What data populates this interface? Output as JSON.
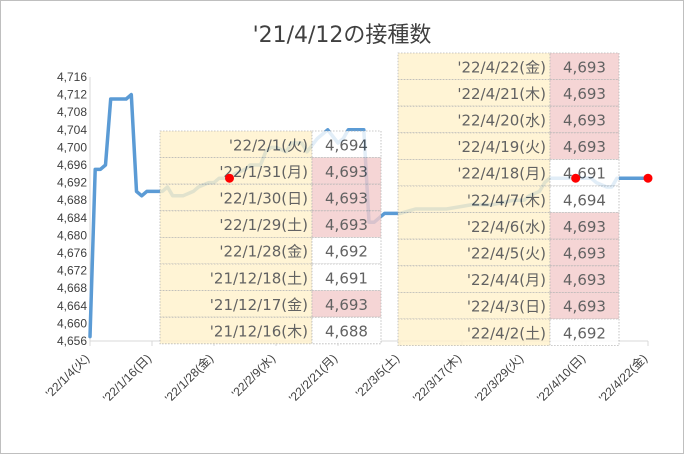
{
  "chart_data": {
    "type": "line",
    "title": "'21/4/12の接種数",
    "ylim": [
      4656,
      4716
    ],
    "y_ticks": [
      "4,656",
      "4,660",
      "4,664",
      "4,668",
      "4,672",
      "4,676",
      "4,680",
      "4,684",
      "4,688",
      "4,692",
      "4,696",
      "4,700",
      "4,704",
      "4,708",
      "4,712",
      "4,716"
    ],
    "x_ticks": [
      "'22/1/4(火)",
      "'22/1/16(日)",
      "'22/1/28(金)",
      "'22/2/9(水)",
      "'22/2/21(月)",
      "'22/3/5(土)",
      "'22/3/17(木)",
      "'22/3/29(火)",
      "'22/4/10(日)",
      "'22/4/22(金)"
    ],
    "x_start": "2022-01-04",
    "x_end": "2022-04-22",
    "series": [
      {
        "color": "#5b9bd5",
        "points": [
          [
            "2022-01-04",
            4657
          ],
          [
            "2022-01-05",
            4695
          ],
          [
            "2022-01-06",
            4695
          ],
          [
            "2022-01-07",
            4696
          ],
          [
            "2022-01-08",
            4711
          ],
          [
            "2022-01-10",
            4711
          ],
          [
            "2022-01-11",
            4711
          ],
          [
            "2022-01-12",
            4712
          ],
          [
            "2022-01-13",
            4690
          ],
          [
            "2022-01-14",
            4689
          ],
          [
            "2022-01-15",
            4690
          ],
          [
            "2022-01-16",
            4690
          ],
          [
            "2022-01-18",
            4690
          ],
          [
            "2022-01-19",
            4691
          ],
          [
            "2022-01-20",
            4689
          ],
          [
            "2022-01-22",
            4689
          ],
          [
            "2022-01-24",
            4690
          ],
          [
            "2022-01-25",
            4691
          ],
          [
            "2022-01-27",
            4692
          ],
          [
            "2022-01-28",
            4692
          ],
          [
            "2022-01-29",
            4693
          ],
          [
            "2022-01-30",
            4693
          ],
          [
            "2022-01-31",
            4693
          ],
          [
            "2022-02-01",
            4694
          ],
          [
            "2022-02-03",
            4695
          ],
          [
            "2022-02-04",
            4696
          ],
          [
            "2022-02-06",
            4696
          ],
          [
            "2022-02-07",
            4699
          ],
          [
            "2022-02-08",
            4700
          ],
          [
            "2022-02-09",
            4700
          ],
          [
            "2022-02-11",
            4699
          ],
          [
            "2022-02-12",
            4701
          ],
          [
            "2022-02-14",
            4701
          ],
          [
            "2022-02-15",
            4699
          ],
          [
            "2022-02-17",
            4702
          ],
          [
            "2022-02-19",
            4704
          ],
          [
            "2022-02-21",
            4701
          ],
          [
            "2022-02-22",
            4702
          ],
          [
            "2022-02-23",
            4704
          ],
          [
            "2022-02-26",
            4704
          ],
          [
            "2022-02-27",
            4683
          ],
          [
            "2022-02-28",
            4683
          ],
          [
            "2022-03-01",
            4684
          ],
          [
            "2022-03-02",
            4685
          ],
          [
            "2022-03-05",
            4685
          ],
          [
            "2022-03-08",
            4686
          ],
          [
            "2022-03-14",
            4686
          ],
          [
            "2022-03-19",
            4687
          ],
          [
            "2022-03-23",
            4687
          ],
          [
            "2022-03-27",
            4688
          ],
          [
            "2022-03-29",
            4688
          ],
          [
            "2022-03-30",
            4689
          ],
          [
            "2022-04-01",
            4690
          ],
          [
            "2022-04-02",
            4692
          ],
          [
            "2022-04-03",
            4693
          ],
          [
            "2022-04-11",
            4693
          ],
          [
            "2022-04-12",
            4692
          ],
          [
            "2022-04-14",
            4691
          ],
          [
            "2022-04-15",
            4691
          ],
          [
            "2022-04-16",
            4693
          ],
          [
            "2022-04-22",
            4693
          ]
        ]
      }
    ],
    "markers": [
      {
        "x": "2022-01-31",
        "y": 4693,
        "color": "#ff0000"
      },
      {
        "x": "2022-04-08",
        "y": 4693,
        "color": "#ff0000"
      },
      {
        "x": "2022-04-22",
        "y": 4693,
        "color": "#ff0000"
      }
    ],
    "grid": false,
    "legend": "none"
  },
  "tables": [
    {
      "rows": [
        {
          "date": "'22/2/1(火)",
          "value": "4,694",
          "highlight": false
        },
        {
          "date": "'22/1/31(月)",
          "value": "4,693",
          "highlight": true
        },
        {
          "date": "'22/1/30(日)",
          "value": "4,693",
          "highlight": true
        },
        {
          "date": "'22/1/29(土)",
          "value": "4,693",
          "highlight": true
        },
        {
          "date": "'22/1/28(金)",
          "value": "4,692",
          "highlight": false
        },
        {
          "date": "'21/12/18(土)",
          "value": "4,691",
          "highlight": false
        },
        {
          "date": "'21/12/17(金)",
          "value": "4,693",
          "highlight": true
        },
        {
          "date": "'21/12/16(木)",
          "value": "4,688",
          "highlight": false
        }
      ]
    },
    {
      "rows": [
        {
          "date": "'22/4/22(金)",
          "value": "4,693",
          "highlight": true
        },
        {
          "date": "'22/4/21(木)",
          "value": "4,693",
          "highlight": true
        },
        {
          "date": "'22/4/20(水)",
          "value": "4,693",
          "highlight": true
        },
        {
          "date": "'22/4/19(火)",
          "value": "4,693",
          "highlight": true
        },
        {
          "date": "'22/4/18(月)",
          "value": "4,691",
          "highlight": false
        },
        {
          "date": "'22/4/7(木)",
          "value": "4,694",
          "highlight": false
        },
        {
          "date": "'22/4/6(水)",
          "value": "4,693",
          "highlight": true
        },
        {
          "date": "'22/4/5(火)",
          "value": "4,693",
          "highlight": true
        },
        {
          "date": "'22/4/4(月)",
          "value": "4,693",
          "highlight": true
        },
        {
          "date": "'22/4/3(日)",
          "value": "4,693",
          "highlight": true
        },
        {
          "date": "'22/4/2(土)",
          "value": "4,692",
          "highlight": false
        }
      ]
    }
  ],
  "colors": {
    "date_fill": "#fff2cc",
    "value_fill": "#ffffff",
    "highlight_fill": "#f4cccc",
    "highlight_text": "#e06666",
    "cell_border": "#a6a6a6"
  }
}
